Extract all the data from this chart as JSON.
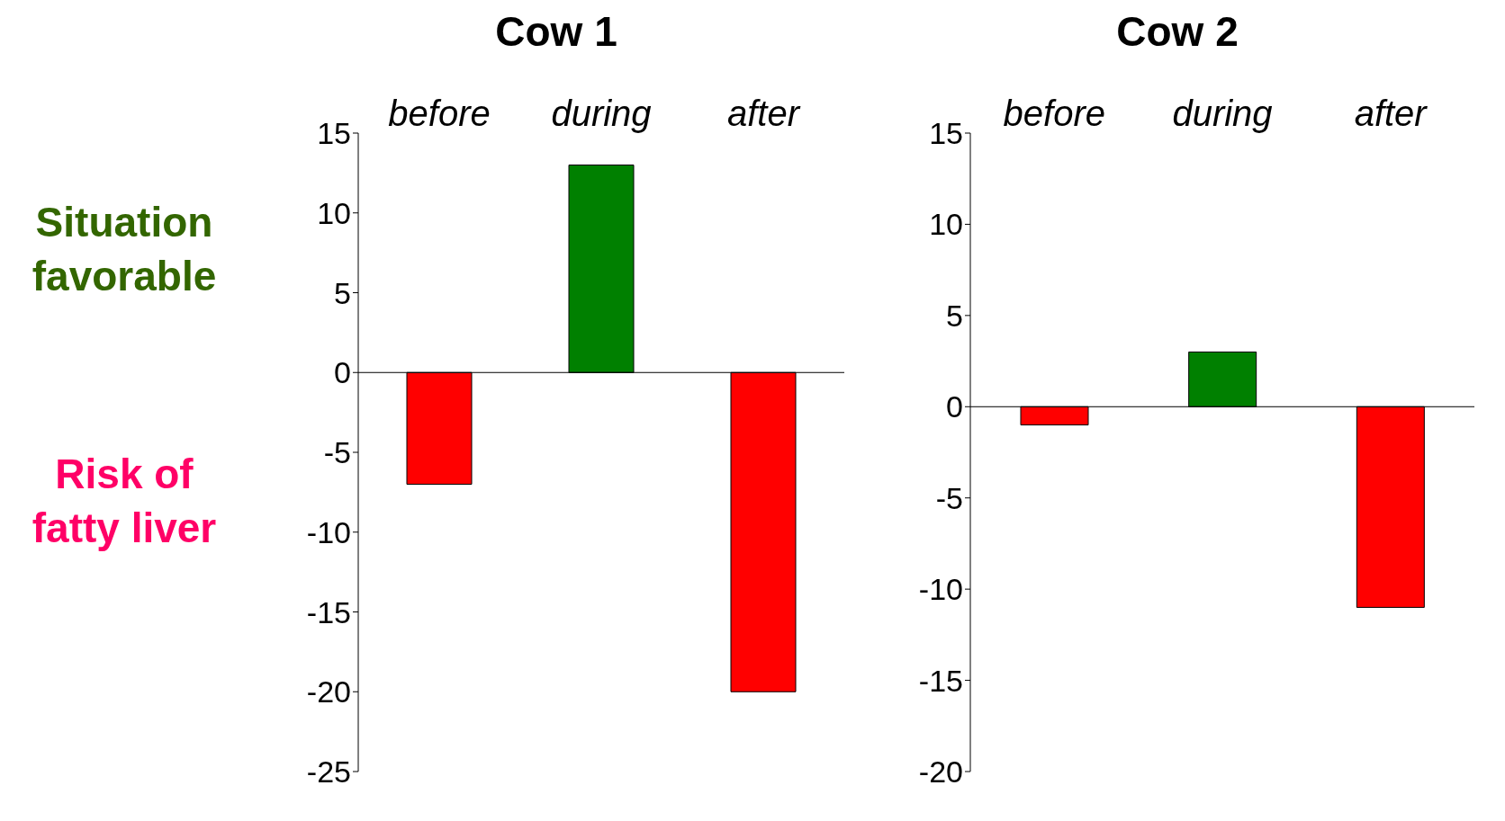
{
  "chart_data": [
    {
      "type": "bar",
      "title": "Cow 1",
      "categories": [
        "before",
        "during",
        "after"
      ],
      "values": [
        -7,
        13,
        -20
      ],
      "colors": [
        "#ff0000",
        "#008000",
        "#ff0000"
      ],
      "ylim": [
        -25,
        15
      ],
      "yticks": [
        -25,
        -20,
        -15,
        -10,
        -5,
        0,
        5,
        10,
        15
      ],
      "annotations": [
        "Situation favorable",
        "Risk of fatty liver"
      ]
    },
    {
      "type": "bar",
      "title": "Cow 2",
      "categories": [
        "before",
        "during",
        "after"
      ],
      "values": [
        -1,
        3,
        -11
      ],
      "colors": [
        "#ff0000",
        "#008000",
        "#ff0000"
      ],
      "ylim": [
        -20,
        15
      ],
      "yticks": [
        -20,
        -15,
        -10,
        -5,
        0,
        5,
        10,
        15
      ]
    }
  ]
}
